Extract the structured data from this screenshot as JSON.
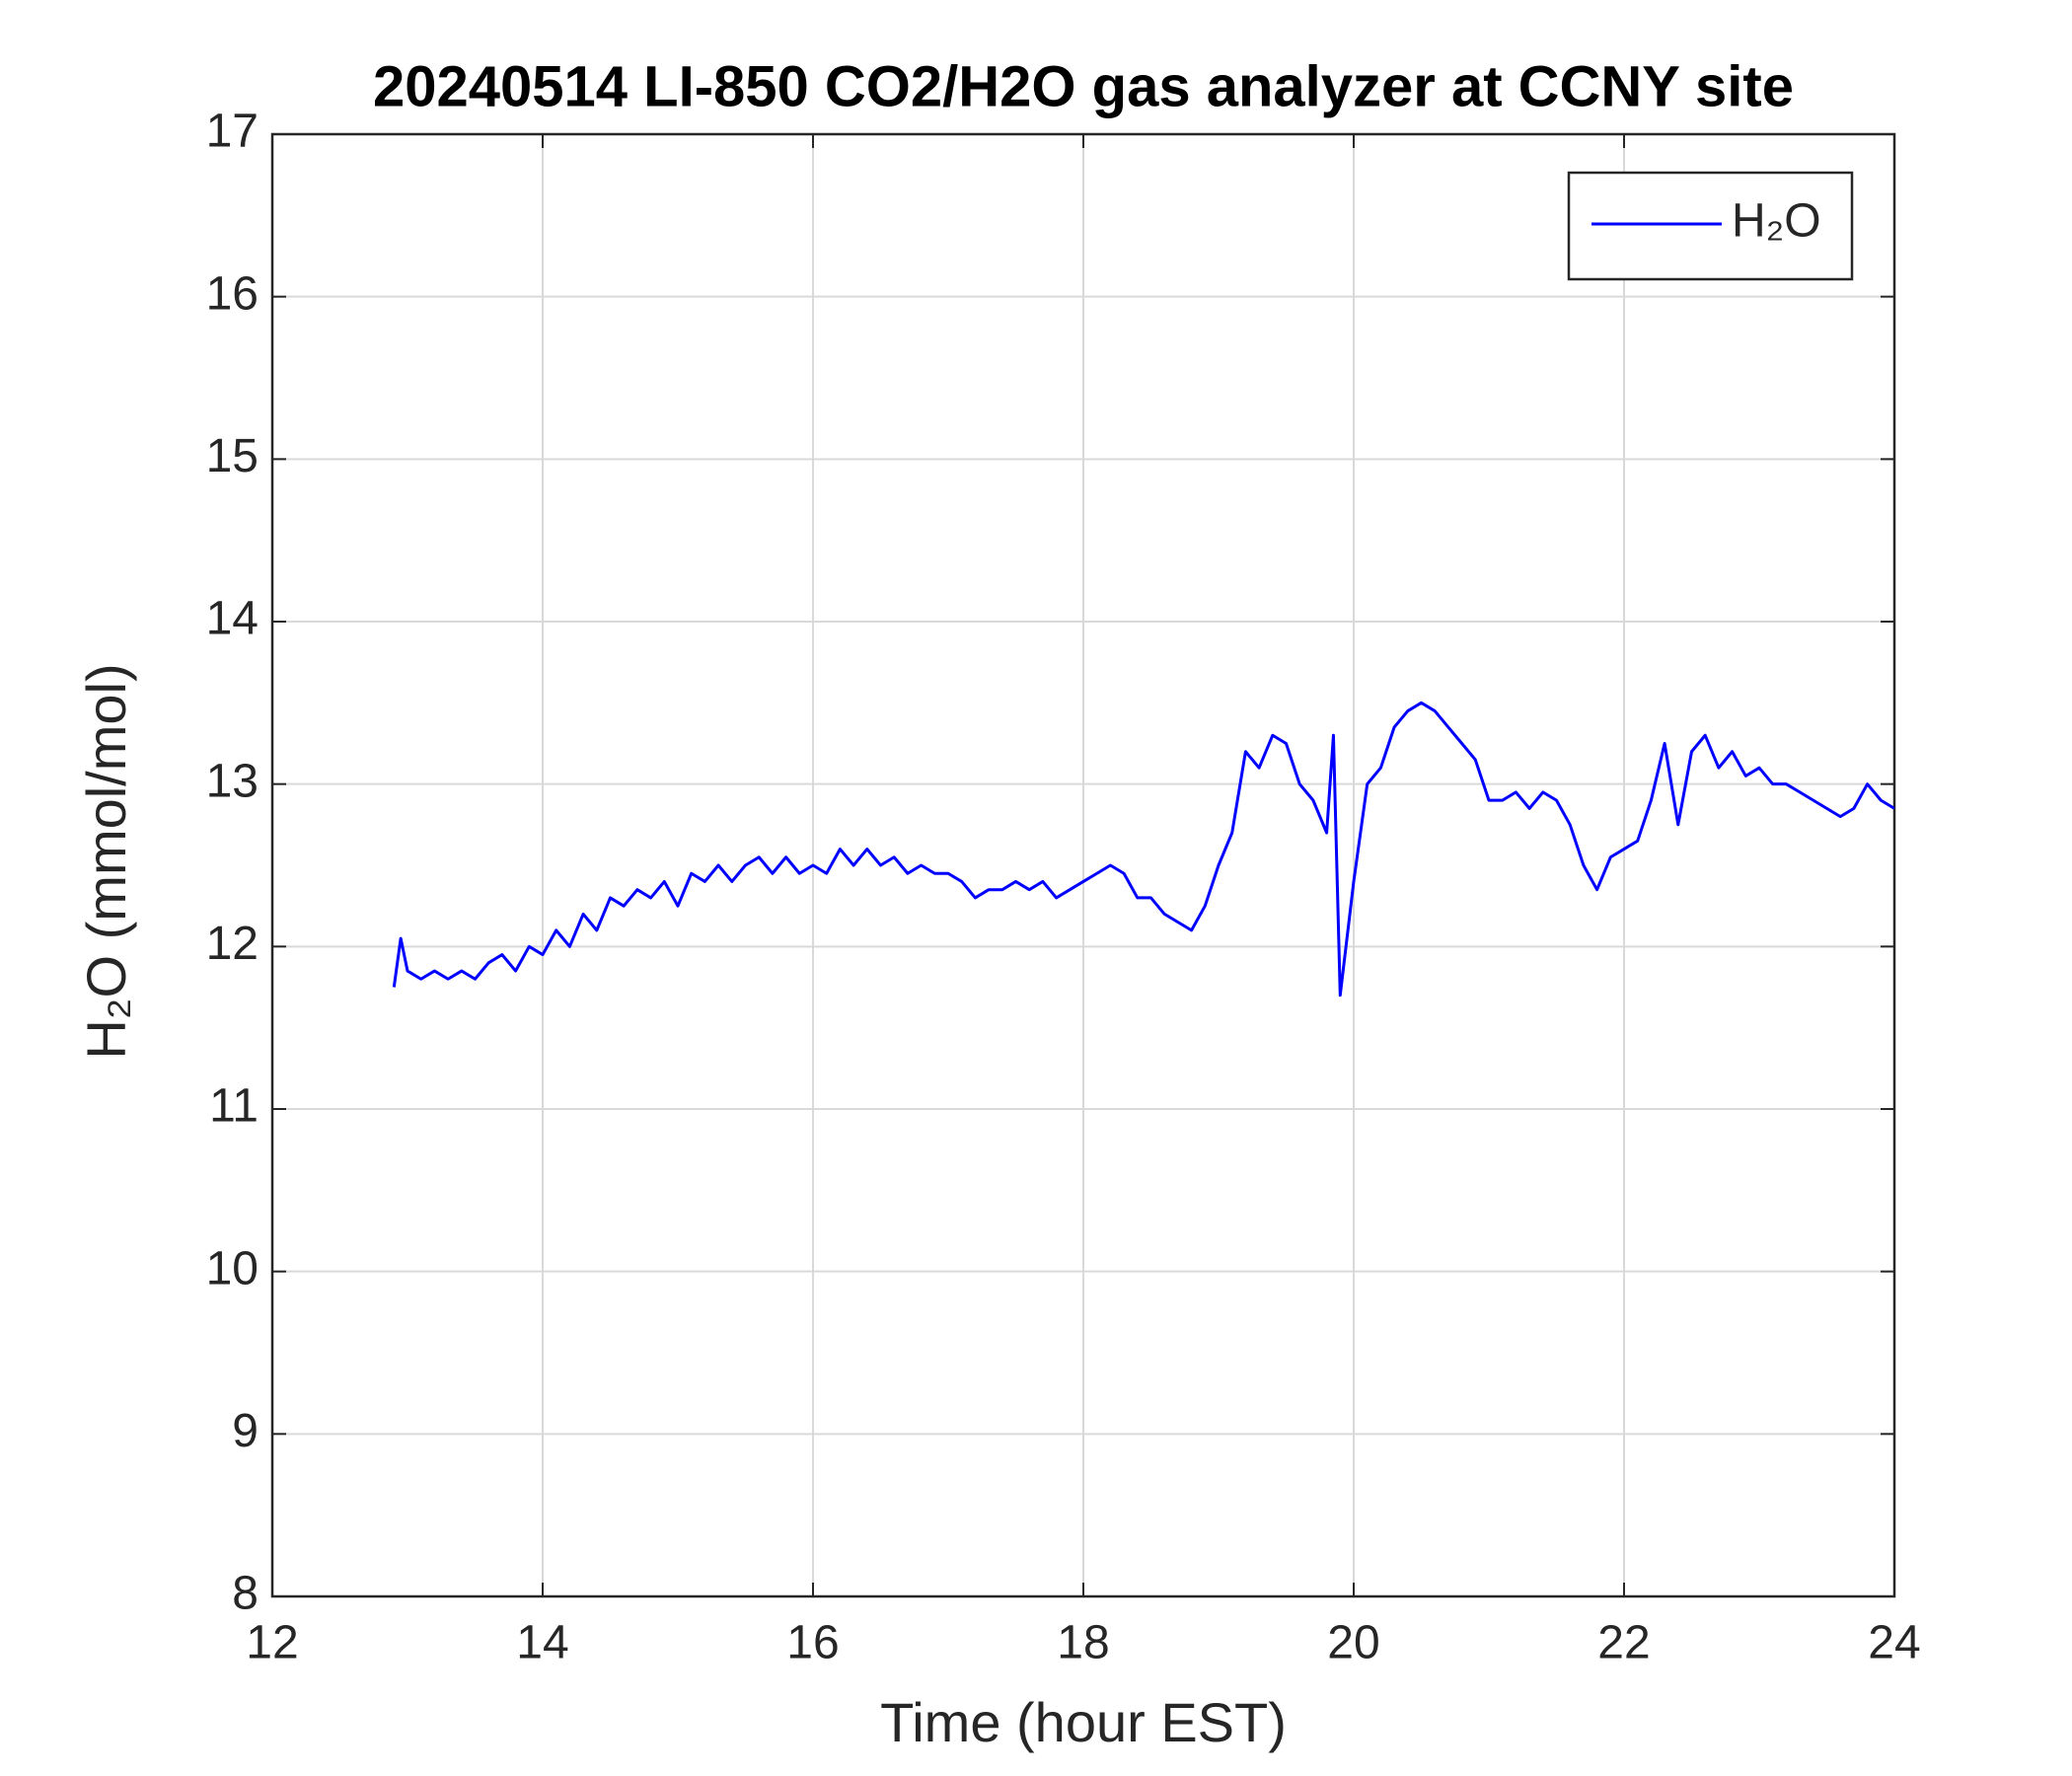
{
  "chart_data": {
    "type": "line",
    "title": "20240514 LI-850 CO2/H2O gas analyzer at CCNY site",
    "x_label": "Time (hour EST)",
    "y_label": "H₂O (mmol/mol)",
    "xlim": [
      12,
      24
    ],
    "xticks": [
      12,
      14,
      16,
      18,
      20,
      22,
      24
    ],
    "ylim": [
      8,
      17
    ],
    "yticks": [
      8,
      9,
      10,
      11,
      12,
      13,
      14,
      15,
      16,
      17
    ],
    "grid": true,
    "legend": "northeast",
    "series": [
      {
        "name": "H₂O",
        "color": "#0000ff",
        "x": [
          12.9,
          12.95,
          13.0,
          13.1,
          13.2,
          13.3,
          13.4,
          13.5,
          13.6,
          13.7,
          13.8,
          13.9,
          14.0,
          14.1,
          14.2,
          14.3,
          14.4,
          14.5,
          14.6,
          14.7,
          14.8,
          14.9,
          15.0,
          15.1,
          15.2,
          15.3,
          15.4,
          15.5,
          15.6,
          15.7,
          15.8,
          15.9,
          16.0,
          16.1,
          16.2,
          16.3,
          16.4,
          16.5,
          16.6,
          16.7,
          16.8,
          16.9,
          17.0,
          17.1,
          17.2,
          17.3,
          17.4,
          17.5,
          17.6,
          17.7,
          17.8,
          17.9,
          18.0,
          18.1,
          18.2,
          18.3,
          18.4,
          18.5,
          18.6,
          18.7,
          18.8,
          18.9,
          19.0,
          19.1,
          19.2,
          19.3,
          19.4,
          19.5,
          19.6,
          19.7,
          19.8,
          19.85,
          19.9,
          20.0,
          20.1,
          20.2,
          20.3,
          20.4,
          20.5,
          20.6,
          20.7,
          20.8,
          20.9,
          21.0,
          21.1,
          21.2,
          21.3,
          21.4,
          21.5,
          21.6,
          21.7,
          21.8,
          21.9,
          22.0,
          22.1,
          22.2,
          22.3,
          22.4,
          22.5,
          22.6,
          22.7,
          22.8,
          22.9,
          23.0,
          23.1,
          23.2,
          23.3,
          23.4,
          23.5,
          23.6,
          23.7,
          23.8,
          23.9,
          24.0
        ],
        "values": [
          11.75,
          12.05,
          11.85,
          11.8,
          11.85,
          11.8,
          11.85,
          11.8,
          11.9,
          11.95,
          11.85,
          12.0,
          11.95,
          12.1,
          12.0,
          12.2,
          12.1,
          12.3,
          12.25,
          12.35,
          12.3,
          12.4,
          12.25,
          12.45,
          12.4,
          12.5,
          12.4,
          12.5,
          12.55,
          12.45,
          12.55,
          12.45,
          12.5,
          12.45,
          12.6,
          12.5,
          12.6,
          12.5,
          12.55,
          12.45,
          12.5,
          12.45,
          12.45,
          12.4,
          12.3,
          12.35,
          12.35,
          12.4,
          12.35,
          12.4,
          12.3,
          12.35,
          12.4,
          12.45,
          12.5,
          12.45,
          12.3,
          12.3,
          12.2,
          12.15,
          12.1,
          12.25,
          12.5,
          12.7,
          13.2,
          13.1,
          13.3,
          13.25,
          13.0,
          12.9,
          12.7,
          13.3,
          11.7,
          12.4,
          13.0,
          13.1,
          13.35,
          13.45,
          13.5,
          13.45,
          13.35,
          13.25,
          13.15,
          12.9,
          12.9,
          12.95,
          12.85,
          12.95,
          12.9,
          12.75,
          12.5,
          12.35,
          12.55,
          12.6,
          12.65,
          12.9,
          13.25,
          12.75,
          13.2,
          13.3,
          13.1,
          13.2,
          13.05,
          13.1,
          13.0,
          13.0,
          12.95,
          12.9,
          12.85,
          12.8,
          12.85,
          13.0,
          12.9,
          12.85
        ]
      }
    ]
  }
}
